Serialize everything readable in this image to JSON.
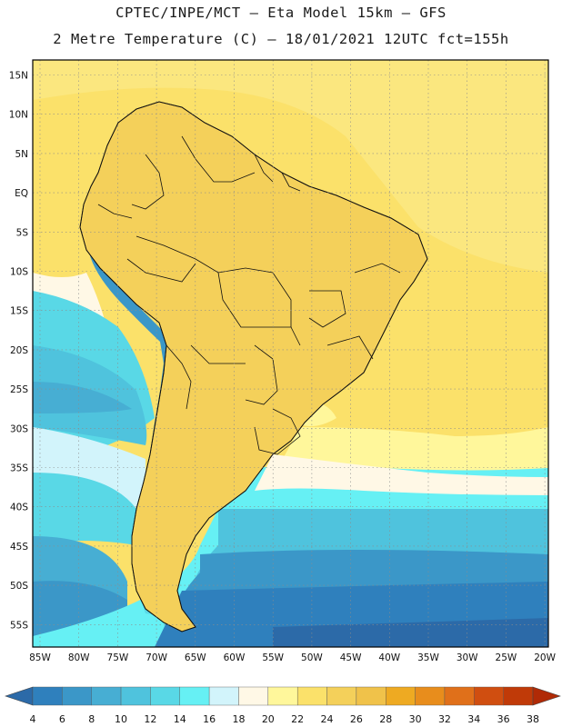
{
  "header": {
    "line1": "CPTEC/INPE/MCT –  Eta Model 15km – GFS",
    "line2": "2 Metre Temperature (C) – 18/01/2021 12UTC fct=155h"
  },
  "map": {
    "region": "South America",
    "lat_labels": [
      "15N",
      "10N",
      "5N",
      "EQ",
      "5S",
      "10S",
      "15S",
      "20S",
      "25S",
      "30S",
      "35S",
      "40S",
      "45S",
      "50S",
      "55S"
    ],
    "lon_labels": [
      "85W",
      "80W",
      "75W",
      "70W",
      "65W",
      "60W",
      "55W",
      "50W",
      "45W",
      "40W",
      "35W",
      "30W",
      "25W",
      "20W"
    ]
  },
  "colorbar": {
    "levels": [
      "4",
      "6",
      "8",
      "10",
      "12",
      "14",
      "16",
      "18",
      "20",
      "22",
      "24",
      "26",
      "28",
      "30",
      "32",
      "34",
      "36",
      "38"
    ],
    "colors": [
      "#2c6aa8",
      "#2f80bd",
      "#3b97c8",
      "#47aed3",
      "#4fc3dd",
      "#59d8e6",
      "#66f0f4",
      "#d2f4fb",
      "#fff8e6",
      "#fff79b",
      "#fbe16a",
      "#f4d05a",
      "#f0c24a",
      "#eeaa22",
      "#e88d1c",
      "#e0701a",
      "#d04e10",
      "#c03a08",
      "#b02a06"
    ]
  }
}
